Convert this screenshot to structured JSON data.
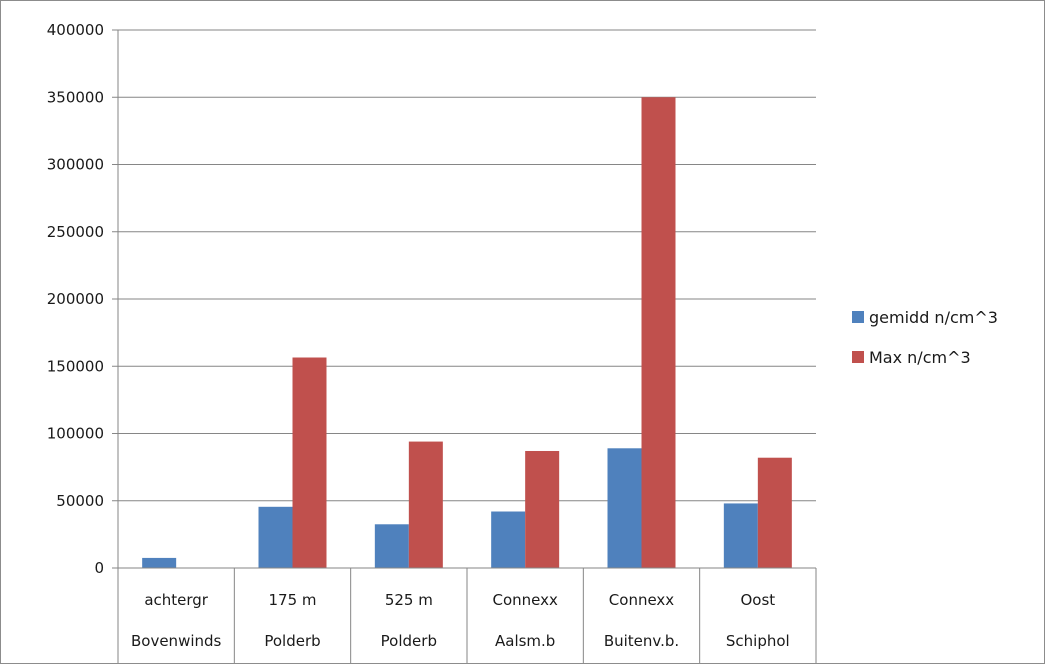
{
  "chart_data": {
    "type": "bar",
    "categories": [
      [
        "achtergr",
        "Bovenwinds"
      ],
      [
        "175 m",
        "Polderb"
      ],
      [
        "525 m",
        "Polderb"
      ],
      [
        "Connexx",
        "Aalsm.b"
      ],
      [
        "Connexx",
        "Buitenv.b."
      ],
      [
        "Oost",
        "Schiphol"
      ]
    ],
    "series": [
      {
        "name": "gemidd n/cm^3",
        "color": "#4f81bd",
        "values": [
          7500,
          45500,
          32500,
          42000,
          89000,
          48000
        ]
      },
      {
        "name": "Max n/cm^3",
        "color": "#c0504d",
        "values": [
          0,
          156500,
          94000,
          87000,
          350000,
          82000
        ]
      }
    ],
    "yticks": [
      "0",
      "50000",
      "100000",
      "150000",
      "200000",
      "250000",
      "300000",
      "350000",
      "400000"
    ],
    "ylim": [
      0,
      400000
    ],
    "grid": true,
    "legend": "right"
  }
}
